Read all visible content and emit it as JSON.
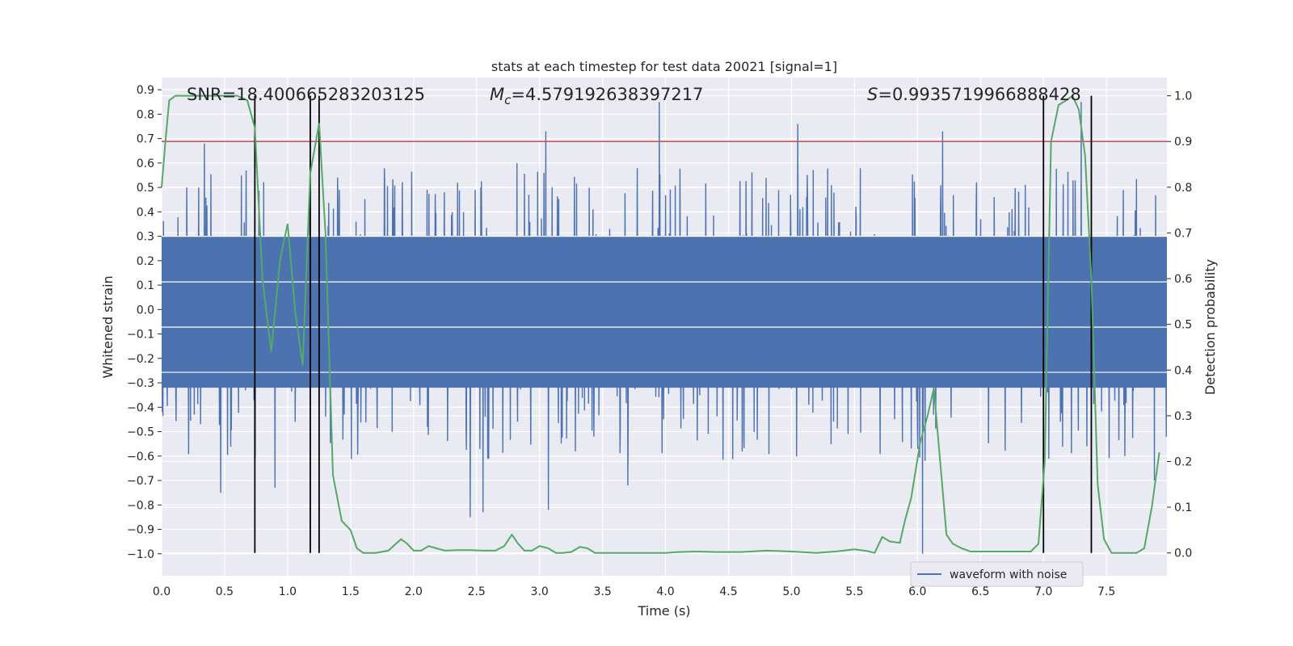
{
  "chart_data": {
    "type": "line",
    "title": "stats at each timestep for test data 20021 [signal=1]",
    "xlabel": "Time (s)",
    "ylabel_left": "Whitened strain",
    "ylabel_right": "Detection probability",
    "xlim": [
      0.0,
      7.98
    ],
    "ylim_left": [
      -1.09,
      0.95
    ],
    "ylim_right": [
      -0.05,
      1.04
    ],
    "x_ticks": [
      "0.0",
      "0.5",
      "1.0",
      "1.5",
      "2.0",
      "2.5",
      "3.0",
      "3.5",
      "4.0",
      "4.5",
      "5.0",
      "5.5",
      "6.0",
      "6.5",
      "7.0",
      "7.5"
    ],
    "y_ticks_left": [
      "0.9",
      "0.8",
      "0.7",
      "0.6",
      "0.5",
      "0.4",
      "0.3",
      "0.2",
      "0.1",
      "0.0",
      "−0.1",
      "−0.2",
      "−0.3",
      "−0.4",
      "−0.5",
      "−0.6",
      "−0.7",
      "−0.8",
      "−0.9",
      "−1.0"
    ],
    "y_ticks_right": [
      "1.0",
      "0.9",
      "0.8",
      "0.7",
      "0.6",
      "0.5",
      "0.4",
      "0.3",
      "0.2",
      "0.1",
      "0.0"
    ],
    "grid": true,
    "legend": {
      "position": "lower-right",
      "entries": [
        "waveform with noise"
      ]
    },
    "annotations": {
      "snr": "SNR=18.400665283203125",
      "mc_symbol": "M",
      "mc_sub": "c",
      "mc_value": "=4.579192638397217",
      "s_symbol": "S",
      "s_value": "=0.9935719966888428"
    },
    "colors": {
      "waveform": "#4c72b0",
      "probability": "#55a868",
      "threshold": "#c44e52",
      "markers": "#000000",
      "background": "#eaeaf2"
    },
    "series": [
      {
        "name": "waveform with noise",
        "axis": "left",
        "description_note": "",
        "envelope_upper_typical": 0.3,
        "envelope_lower_typical": -0.32,
        "peaks_high": [
          [
            0.2,
            0.5
          ],
          [
            0.34,
            0.68
          ],
          [
            0.9,
            0.84
          ],
          [
            2.35,
            0.52
          ],
          [
            2.82,
            0.6
          ],
          [
            3.05,
            0.73
          ],
          [
            3.95,
            0.85
          ],
          [
            5.05,
            0.76
          ],
          [
            6.2,
            0.73
          ],
          [
            7.3,
            0.85
          ],
          [
            7.88,
            0.69
          ]
        ],
        "peaks_low": [
          [
            0.47,
            -0.75
          ],
          [
            0.9,
            -0.73
          ],
          [
            2.45,
            -0.85
          ],
          [
            2.55,
            -0.83
          ],
          [
            3.07,
            -0.82
          ],
          [
            3.7,
            -0.72
          ],
          [
            6.04,
            -1.0
          ],
          [
            7.88,
            -0.7
          ]
        ]
      },
      {
        "name": "",
        "axis": "right",
        "x": [
          0.0,
          0.03,
          0.06,
          0.11,
          0.2,
          0.3,
          0.4,
          0.5,
          0.6,
          0.68,
          0.74,
          0.8,
          0.87,
          0.94,
          1.0,
          1.06,
          1.12,
          1.18,
          1.25,
          1.3,
          1.36,
          1.43,
          1.5,
          1.55,
          1.6,
          1.65,
          1.7,
          1.8,
          1.9,
          1.95,
          2.0,
          2.06,
          2.12,
          2.18,
          2.25,
          2.35,
          2.45,
          2.55,
          2.65,
          2.72,
          2.78,
          2.83,
          2.88,
          2.94,
          3.0,
          3.07,
          3.13,
          3.18,
          3.25,
          3.32,
          3.38,
          3.44,
          3.5,
          3.6,
          3.8,
          4.0,
          4.1,
          4.25,
          4.4,
          4.6,
          4.8,
          4.9,
          5.0,
          5.2,
          5.35,
          5.5,
          5.6,
          5.66,
          5.72,
          5.78,
          5.86,
          5.9,
          5.95,
          6.02,
          6.08,
          6.13,
          6.18,
          6.23,
          6.28,
          6.35,
          6.42,
          6.5,
          6.7,
          6.9,
          6.96,
          7.01,
          7.06,
          7.12,
          7.18,
          7.23,
          7.28,
          7.33,
          7.38,
          7.43,
          7.48,
          7.54,
          7.6,
          7.66,
          7.74,
          7.8,
          7.86,
          7.92
        ],
        "y": [
          0.8,
          0.9,
          0.99,
          1.0,
          1.0,
          1.0,
          1.0,
          1.0,
          1.0,
          0.99,
          0.93,
          0.6,
          0.44,
          0.64,
          0.72,
          0.53,
          0.41,
          0.83,
          0.94,
          0.7,
          0.17,
          0.07,
          0.05,
          0.01,
          0.0,
          0.0,
          0.0,
          0.005,
          0.03,
          0.02,
          0.005,
          0.005,
          0.015,
          0.01,
          0.005,
          0.006,
          0.006,
          0.005,
          0.005,
          0.015,
          0.04,
          0.02,
          0.005,
          0.005,
          0.015,
          0.01,
          0.0,
          0.0,
          0.002,
          0.013,
          0.01,
          0.0,
          0.0,
          0.0,
          0.0,
          0.0,
          0.002,
          0.003,
          0.002,
          0.002,
          0.005,
          0.004,
          0.003,
          0.0,
          0.003,
          0.008,
          0.004,
          0.0,
          0.035,
          0.025,
          0.022,
          0.07,
          0.12,
          0.24,
          0.3,
          0.36,
          0.2,
          0.04,
          0.02,
          0.01,
          0.003,
          0.003,
          0.003,
          0.003,
          0.02,
          0.2,
          0.9,
          0.98,
          0.99,
          1.0,
          0.97,
          0.87,
          0.6,
          0.15,
          0.03,
          0.0,
          0.0,
          0.0,
          0.0,
          0.01,
          0.1,
          0.22
        ]
      }
    ],
    "threshold_right": 0.9,
    "vertical_markers_x": [
      0.74,
      1.18,
      1.25,
      7.0,
      7.38
    ]
  }
}
